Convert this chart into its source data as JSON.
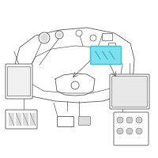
{
  "bg_color": "#ffffff",
  "line_color": "#555555",
  "highlight_color": "#40c8d8",
  "highlight_face": "#7de0ec",
  "fig_width": 2.0,
  "fig_height": 2.0,
  "dpi": 100,
  "title": "",
  "line_width": 0.6
}
